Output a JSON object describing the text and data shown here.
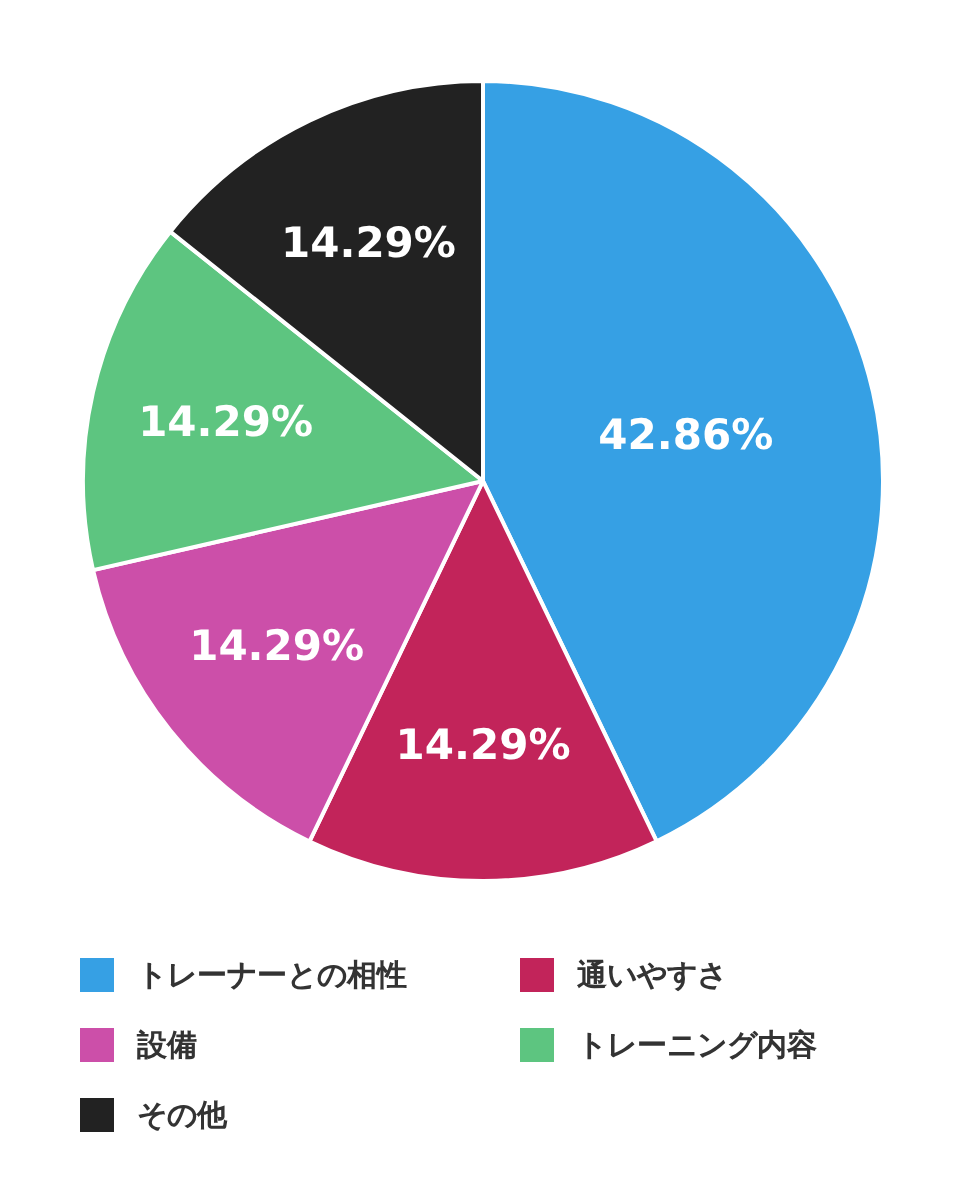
{
  "chart_data": {
    "type": "pie",
    "categories": [
      "トレーナーとの相性",
      "通いやすさ",
      "設備",
      "トレーニング内容",
      "その他"
    ],
    "values": [
      42.86,
      14.29,
      14.29,
      14.29,
      14.29
    ],
    "colors": [
      "#36a0e4",
      "#c2245a",
      "#cc4fa9",
      "#5dc580",
      "#222222"
    ],
    "value_labels": [
      "42.86%",
      "14.29%",
      "14.29%",
      "14.29%",
      "14.29%"
    ],
    "legend": "bottom"
  }
}
